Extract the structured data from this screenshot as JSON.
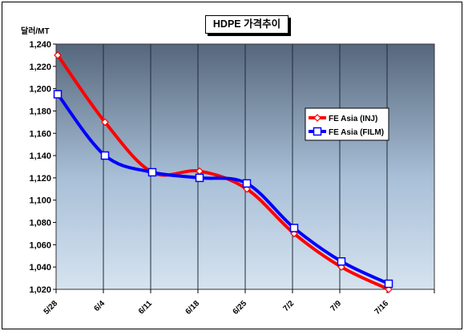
{
  "chart_data": {
    "type": "line",
    "title": "HDPE 가격추이",
    "ylabel": "달러/MT",
    "xlabel": "",
    "categories": [
      "5/28",
      "6/4",
      "6/11",
      "6/18",
      "6/25",
      "7/2",
      "7/9",
      "7/16"
    ],
    "ylim": [
      1020,
      1240
    ],
    "yticks": [
      1020,
      1040,
      1060,
      1080,
      1100,
      1120,
      1140,
      1160,
      1180,
      1200,
      1220,
      1240
    ],
    "ytick_labels": [
      "1,020",
      "1,040",
      "1,060",
      "1,080",
      "1,100",
      "1,120",
      "1,140",
      "1,160",
      "1,180",
      "1,200",
      "1,220",
      "1,240"
    ],
    "grid": true,
    "legend_position": "right-middle",
    "series": [
      {
        "name": "FE Asia (INJ)",
        "color": "#ff0000",
        "marker": "diamond",
        "values": [
          1230,
          1170,
          1125,
          1126,
          1110,
          1070,
          1040,
          1020
        ]
      },
      {
        "name": "FE Asia (FILM)",
        "color": "#0000ff",
        "marker": "square",
        "values": [
          1195,
          1140,
          1125,
          1120,
          1115,
          1075,
          1045,
          1025
        ]
      }
    ]
  }
}
